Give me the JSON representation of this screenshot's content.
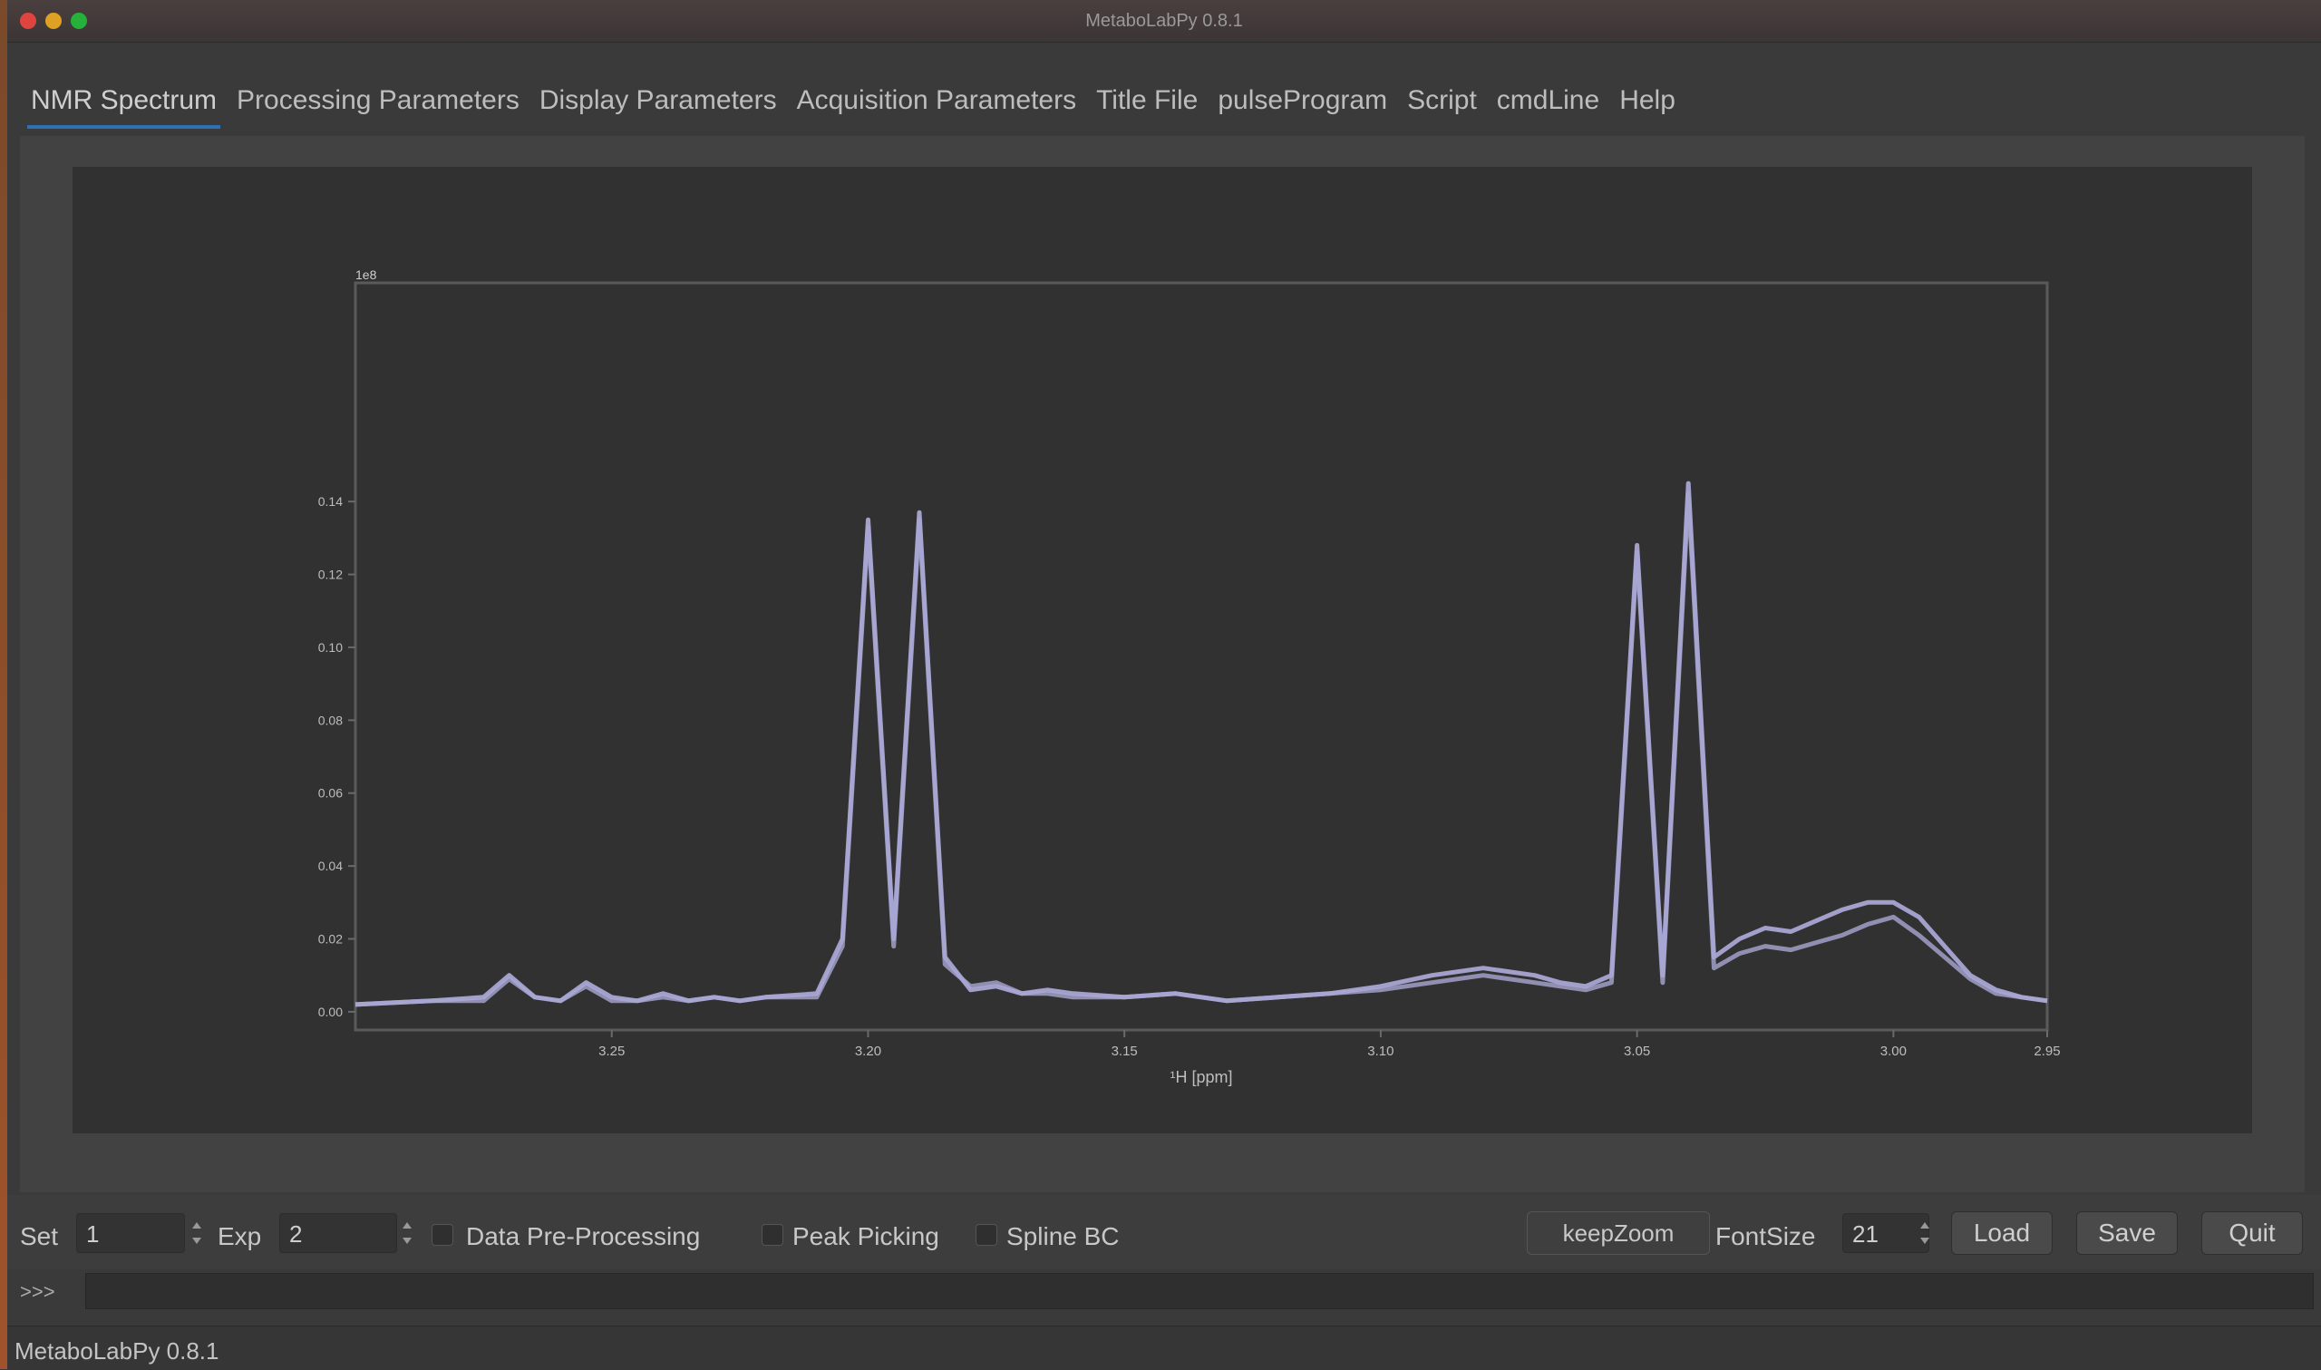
{
  "window": {
    "title": "MetaboLabPy 0.8.1"
  },
  "tabs": [
    {
      "label": "NMR Spectrum",
      "active": true
    },
    {
      "label": "Processing Parameters",
      "active": false
    },
    {
      "label": "Display Parameters",
      "active": false
    },
    {
      "label": "Acquisition Parameters",
      "active": false
    },
    {
      "label": "Title File",
      "active": false
    },
    {
      "label": "pulseProgram",
      "active": false
    },
    {
      "label": "Script",
      "active": false
    },
    {
      "label": "cmdLine",
      "active": false
    },
    {
      "label": "Help",
      "active": false
    }
  ],
  "plot": {
    "offset_label": "1e8",
    "xlabel": "¹H [ppm]",
    "line_color": "#a9a7d3"
  },
  "chart_data": {
    "type": "line",
    "xlabel": "¹H [ppm]",
    "ylabel": "",
    "xlim": [
      3.3,
      2.97
    ],
    "ylim": [
      -0.005,
      0.2
    ],
    "xticks": [
      3.25,
      3.2,
      3.15,
      3.1,
      3.05,
      3.0,
      2.95
    ],
    "yticks": [
      0.0,
      0.02,
      0.04,
      0.06,
      0.08,
      0.1,
      0.12,
      0.14
    ],
    "series": [
      {
        "x": [
          3.3,
          3.285,
          3.275,
          3.27,
          3.265,
          3.26,
          3.255,
          3.25,
          3.245,
          3.24,
          3.235,
          3.23,
          3.225,
          3.22,
          3.21,
          3.205,
          3.2,
          3.195,
          3.19,
          3.185,
          3.18,
          3.175,
          3.17,
          3.165,
          3.16,
          3.15,
          3.14,
          3.13,
          3.12,
          3.11,
          3.1,
          3.09,
          3.08,
          3.07,
          3.065,
          3.06,
          3.055,
          3.05,
          3.045,
          3.04,
          3.035,
          3.03,
          3.025,
          3.02,
          3.015,
          3.01,
          3.005,
          3.0,
          2.995,
          2.99,
          2.985,
          2.98,
          2.975,
          2.97
        ],
        "y": [
          0.002,
          0.003,
          0.004,
          0.01,
          0.004,
          0.003,
          0.008,
          0.004,
          0.003,
          0.005,
          0.003,
          0.004,
          0.003,
          0.004,
          0.005,
          0.02,
          0.135,
          0.02,
          0.137,
          0.015,
          0.006,
          0.007,
          0.005,
          0.006,
          0.005,
          0.004,
          0.005,
          0.003,
          0.004,
          0.005,
          0.007,
          0.01,
          0.012,
          0.01,
          0.008,
          0.007,
          0.01,
          0.128,
          0.01,
          0.145,
          0.015,
          0.02,
          0.023,
          0.022,
          0.025,
          0.028,
          0.03,
          0.03,
          0.026,
          0.018,
          0.01,
          0.006,
          0.004,
          0.003
        ]
      },
      {
        "x": [
          3.3,
          3.285,
          3.275,
          3.27,
          3.265,
          3.26,
          3.255,
          3.25,
          3.245,
          3.24,
          3.235,
          3.23,
          3.225,
          3.22,
          3.21,
          3.205,
          3.2,
          3.195,
          3.19,
          3.185,
          3.18,
          3.175,
          3.17,
          3.165,
          3.16,
          3.15,
          3.14,
          3.13,
          3.12,
          3.11,
          3.1,
          3.09,
          3.08,
          3.07,
          3.065,
          3.06,
          3.055,
          3.05,
          3.045,
          3.04,
          3.035,
          3.03,
          3.025,
          3.02,
          3.015,
          3.01,
          3.005,
          3.0,
          2.995,
          2.99,
          2.985,
          2.98,
          2.975,
          2.97
        ],
        "y": [
          0.002,
          0.003,
          0.003,
          0.009,
          0.004,
          0.003,
          0.007,
          0.003,
          0.003,
          0.004,
          0.003,
          0.004,
          0.003,
          0.004,
          0.004,
          0.018,
          0.133,
          0.018,
          0.135,
          0.013,
          0.007,
          0.008,
          0.005,
          0.005,
          0.004,
          0.004,
          0.005,
          0.003,
          0.004,
          0.005,
          0.006,
          0.008,
          0.01,
          0.008,
          0.007,
          0.006,
          0.008,
          0.126,
          0.008,
          0.142,
          0.012,
          0.016,
          0.018,
          0.017,
          0.019,
          0.021,
          0.024,
          0.026,
          0.021,
          0.015,
          0.009,
          0.005,
          0.004,
          0.003
        ]
      }
    ]
  },
  "controls": {
    "set_label": "Set",
    "set_value": "1",
    "exp_label": "Exp",
    "exp_value": "2",
    "preproc_label": "Data Pre-Processing",
    "peak_label": "Peak Picking",
    "spline_label": "Spline BC",
    "keep_zoom": "keepZoom",
    "fontsize_label": "FontSize",
    "fontsize_value": "21",
    "load": "Load",
    "save": "Save",
    "quit": "Quit"
  },
  "cmdline": {
    "label": ">>>"
  },
  "status": {
    "text": "MetaboLabPy 0.8.1"
  }
}
